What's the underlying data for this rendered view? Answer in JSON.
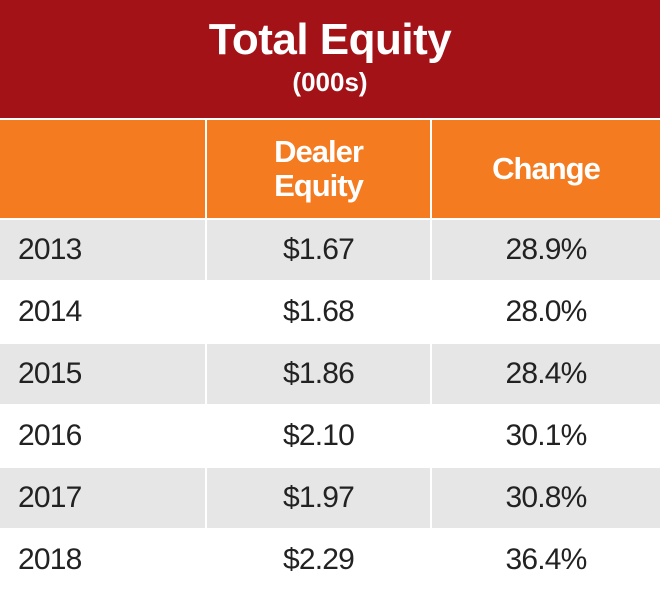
{
  "header": {
    "title": "Total Equity",
    "subtitle": "(000s)"
  },
  "table": {
    "columns": [
      "Dealer Equity",
      "Change"
    ],
    "rows": [
      [
        "2013",
        "$1.67",
        "28.9%"
      ],
      [
        "2014",
        "$1.68",
        "28.0%"
      ],
      [
        "2015",
        "$1.86",
        "28.4%"
      ],
      [
        "2016",
        "$2.10",
        "30.1%"
      ],
      [
        "2017",
        "$1.97",
        "30.8%"
      ],
      [
        "2018",
        "$2.29",
        "36.4%"
      ]
    ]
  }
}
